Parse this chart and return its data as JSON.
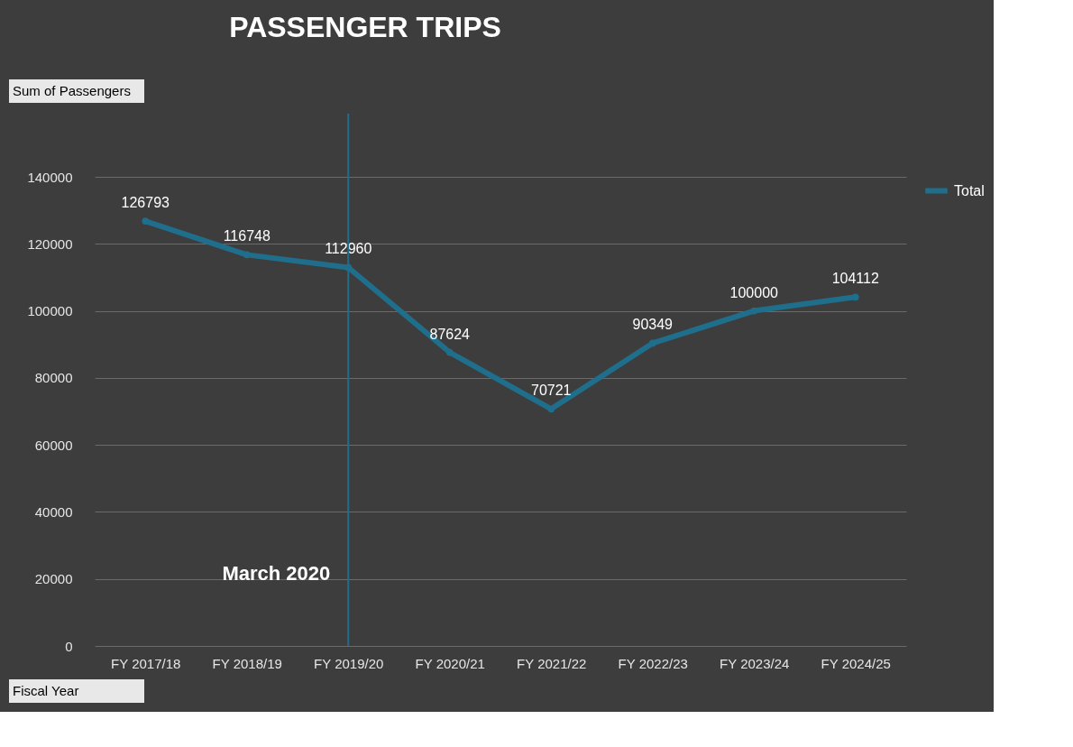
{
  "chart_data": {
    "type": "line",
    "title": "PASSENGER TRIPS",
    "annotations": [
      "Sum of Passengers",
      "Fiscal Year"
    ],
    "categories": [
      "FY 2017/18",
      "FY 2018/19",
      "FY 2019/20",
      "FY 2020/21",
      "FY 2021/22",
      "FY 2022/23",
      "FY 2023/24",
      "FY 2024/25"
    ],
    "series": [
      {
        "name": "Total",
        "color": "#1f6e8c",
        "values": [
          126793,
          116748,
          112960,
          87624,
          70721,
          90349,
          100000,
          104112
        ]
      }
    ],
    "ylim": [
      0,
      140000
    ],
    "yticks": [
      0,
      20000,
      40000,
      60000,
      80000,
      100000,
      120000,
      140000
    ],
    "ref_lines": [
      {
        "axis": "x",
        "value": "FY 2019/20",
        "label": "March 2020",
        "color": "#1f6e8c"
      }
    ],
    "data_labels": true,
    "grid": "y",
    "legend": "right",
    "marker": "circle",
    "line_style": "solid"
  }
}
